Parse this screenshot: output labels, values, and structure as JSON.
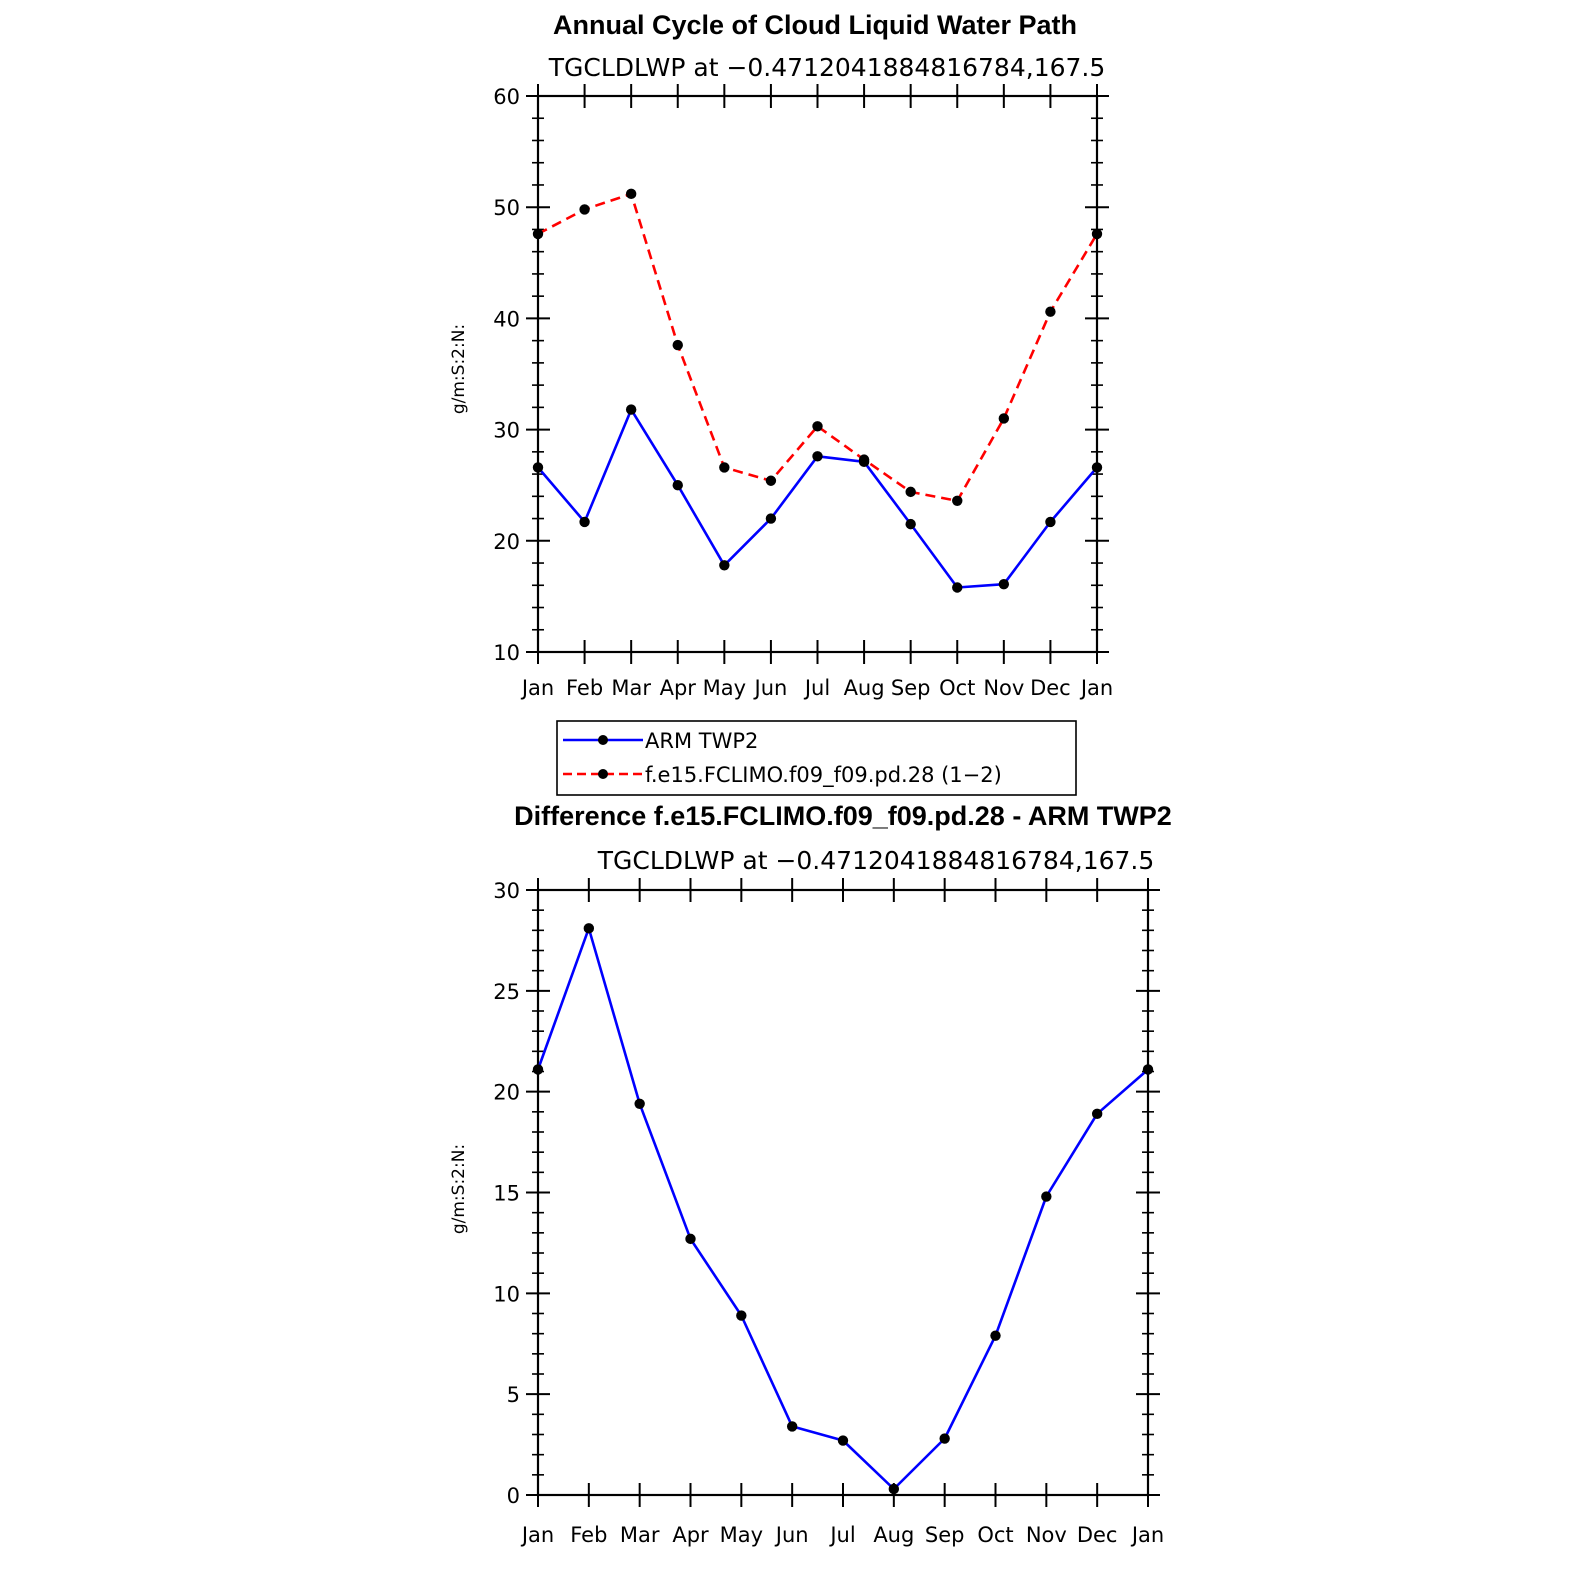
{
  "chart_data": [
    {
      "type": "line",
      "title": "Annual Cycle of Cloud Liquid Water Path",
      "subtitle": "TGCLDLWP at −0.4712041884816784,167.5",
      "ylabel": "g/m:S:2:N:",
      "xlabel": "",
      "categories": [
        "Jan",
        "Feb",
        "Mar",
        "Apr",
        "May",
        "Jun",
        "Jul",
        "Aug",
        "Sep",
        "Oct",
        "Nov",
        "Dec",
        "Jan"
      ],
      "ylim": [
        10,
        60
      ],
      "yticks": [
        10,
        20,
        30,
        40,
        50,
        60
      ],
      "series": [
        {
          "name": "ARM TWP2",
          "color": "#0000ff",
          "dashed": false,
          "values": [
            26.6,
            21.7,
            31.8,
            25.0,
            17.8,
            22.0,
            27.6,
            27.1,
            21.5,
            15.8,
            16.1,
            21.7,
            26.6
          ]
        },
        {
          "name": "f.e15.FCLIMO.f09_f09.pd.28 (1−2)",
          "color": "#ff0000",
          "dashed": true,
          "values": [
            47.6,
            49.8,
            51.2,
            37.6,
            26.6,
            25.4,
            30.3,
            27.3,
            24.4,
            23.6,
            31.0,
            40.6,
            47.6
          ]
        }
      ],
      "legend": {
        "placement": "bottom"
      }
    },
    {
      "type": "line",
      "title": "Difference f.e15.FCLIMO.f09_f09.pd.28 - ARM TWP2",
      "subtitle": "TGCLDLWP at −0.4712041884816784,167.5",
      "ylabel": "g/m:S:2:N:",
      "xlabel": "",
      "categories": [
        "Jan",
        "Feb",
        "Mar",
        "Apr",
        "May",
        "Jun",
        "Jul",
        "Aug",
        "Sep",
        "Oct",
        "Nov",
        "Dec",
        "Jan"
      ],
      "ylim": [
        0,
        30
      ],
      "yticks": [
        0,
        5,
        10,
        15,
        20,
        25,
        30
      ],
      "series": [
        {
          "name": "Difference",
          "color": "#0000ff",
          "dashed": false,
          "values": [
            21.1,
            28.1,
            19.4,
            12.7,
            8.9,
            3.4,
            2.7,
            0.3,
            2.8,
            7.9,
            14.8,
            18.9,
            21.1
          ]
        }
      ]
    }
  ]
}
